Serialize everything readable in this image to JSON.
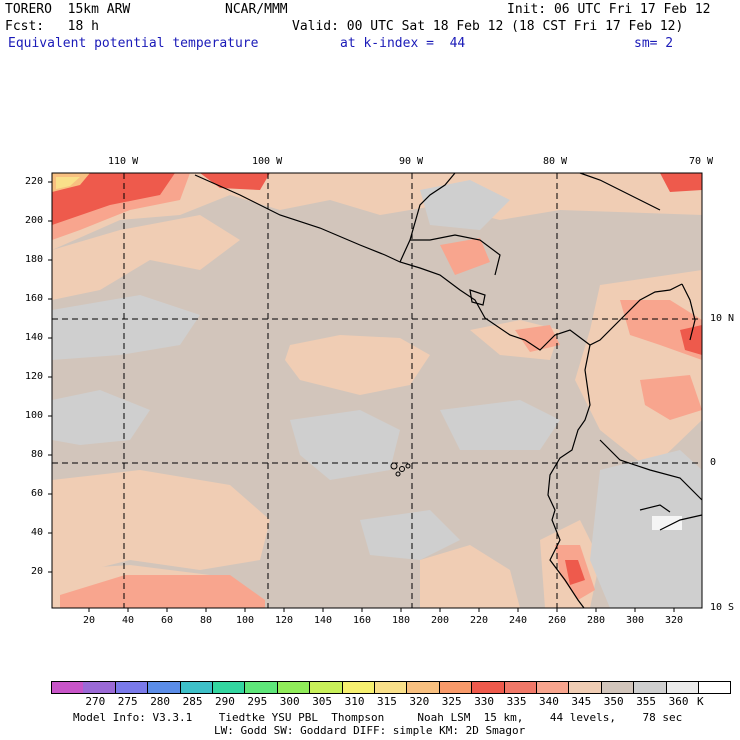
{
  "header": {
    "model": "TORERO  15km ARW",
    "center": "NCAR/MMM",
    "init": "Init: 06 UTC Fri 17 Feb 12",
    "fcst": "Fcst:   18 h",
    "valid": "Valid: 00 UTC Sat 18 Feb 12 (18 CST Fri 17 Feb 12)",
    "field": "Equivalent potential temperature",
    "level": "at k-index =  44",
    "smooth": "sm= 2"
  },
  "colors": {
    "background_field": "#d2c5bb",
    "light_tan": "#f0cdb4",
    "gray": "#cfcfcf",
    "pink": "#f8a58e",
    "red": "#ee5a4c",
    "orange": "#f8c080",
    "yellow": "#f9e08a",
    "white": "#f5f5f5",
    "coast": "#000000",
    "heading_blue": "#1a1ab8"
  },
  "map": {
    "top_labels": [
      "110 W",
      "100 W",
      "90 W",
      "80 W",
      "70 W"
    ],
    "right_labels": [
      "10 N",
      "0",
      "10 S"
    ],
    "x_ticks": [
      "20",
      "40",
      "60",
      "80",
      "100",
      "120",
      "140",
      "160",
      "180",
      "200",
      "220",
      "240",
      "260",
      "280",
      "300",
      "320"
    ],
    "y_ticks": [
      "220",
      "200",
      "180",
      "160",
      "140",
      "120",
      "100",
      "80",
      "60",
      "40",
      "20"
    ]
  },
  "colorbar": {
    "labels": [
      "270",
      "275",
      "280",
      "285",
      "290",
      "295",
      "300",
      "305",
      "310",
      "315",
      "320",
      "325",
      "330",
      "335",
      "340",
      "345",
      "350",
      "355",
      "360"
    ],
    "colors": [
      "#c855c8",
      "#9b6ad6",
      "#7a7aea",
      "#5b8de8",
      "#3ec0c8",
      "#33d6a0",
      "#5ee67a",
      "#90ec5a",
      "#c8f05a",
      "#f6f070",
      "#f9e08a",
      "#f8c080",
      "#f89a6a",
      "#ee5a4c",
      "#f07868",
      "#f8a58e",
      "#f0cdb4",
      "#d2c5bb",
      "#cfcfcf",
      "#ebebeb",
      "#ffffff"
    ],
    "unit": "K"
  },
  "footer": {
    "line1": "Model Info: V3.3.1    Tiedtke YSU PBL  Thompson     Noah LSM  15 km,    44 levels,    78 sec",
    "line2": "LW: Godd SW: Goddard DIFF: simple KM: 2D Smagor"
  }
}
